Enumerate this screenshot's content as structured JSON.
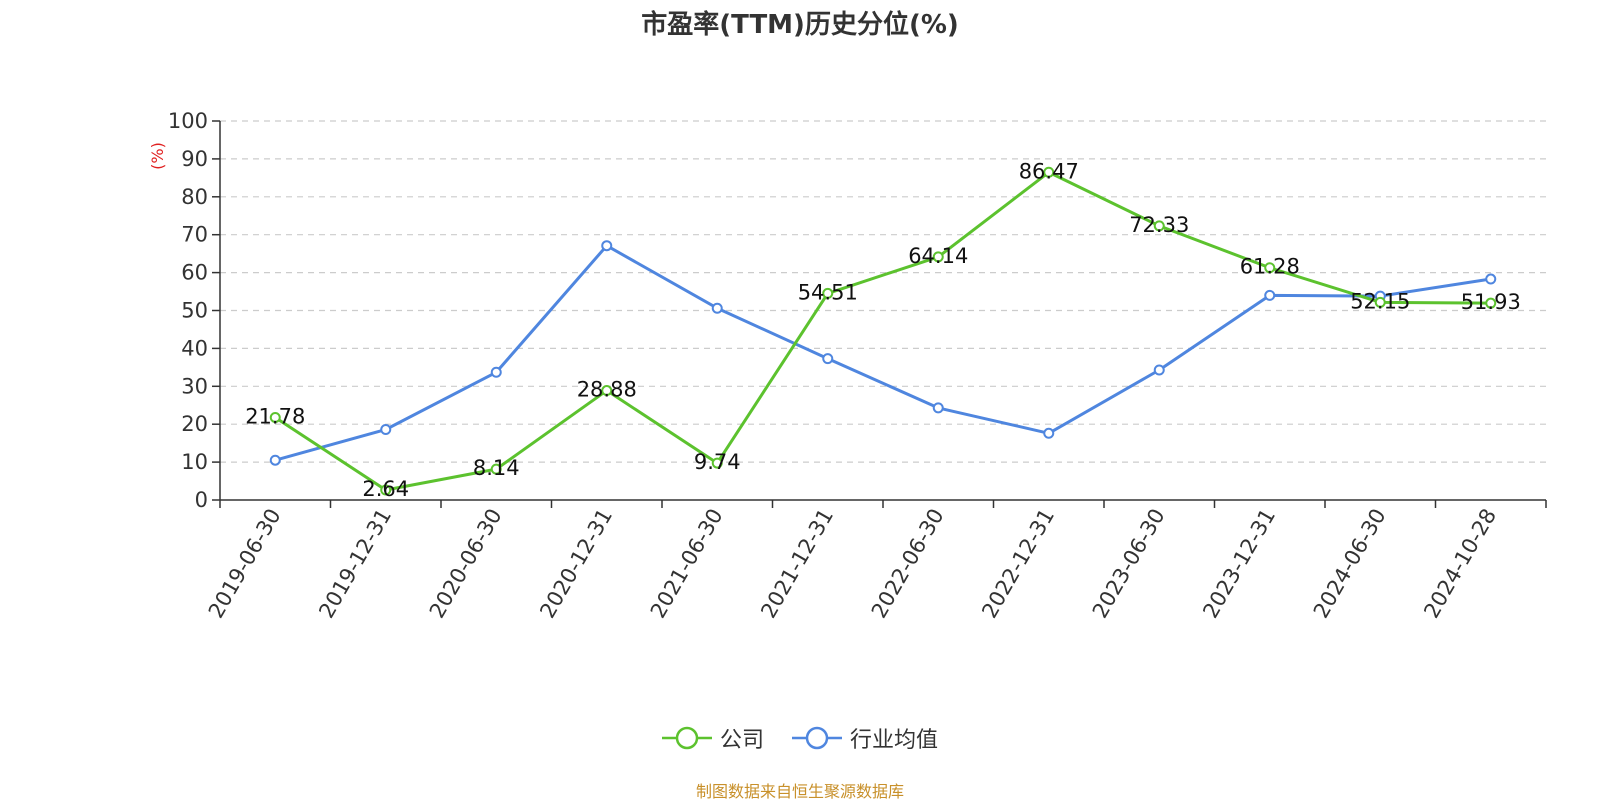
{
  "chart_data": {
    "type": "line",
    "title": "市盈率(TTM)历史分位(%)",
    "ylabel": "(%)",
    "xlabel": "",
    "ylim": [
      0,
      100
    ],
    "yticks": [
      0,
      10,
      20,
      30,
      40,
      50,
      60,
      70,
      80,
      90,
      100
    ],
    "grid": "horizontal-dashed",
    "legend_position": "bottom-center",
    "categories": [
      "2019-06-30",
      "2019-12-31",
      "2020-06-30",
      "2020-12-31",
      "2021-06-30",
      "2021-12-31",
      "2022-06-30",
      "2022-12-31",
      "2023-06-30",
      "2023-12-31",
      "2024-06-30",
      "2024-10-28"
    ],
    "series": [
      {
        "name": "公司",
        "color": "#5cc22e",
        "values": [
          21.78,
          2.64,
          8.14,
          28.88,
          9.74,
          54.51,
          64.14,
          86.47,
          72.33,
          61.28,
          52.15,
          51.93
        ],
        "labels": [
          "21.78",
          "2.64",
          "8.14",
          "28.88",
          "9.74",
          "54.51",
          "64.14",
          "86.47",
          "72.33",
          "61.28",
          "52.15",
          "51.93"
        ]
      },
      {
        "name": "行业均值",
        "color": "#4f86df",
        "values": [
          10.5,
          18.6,
          33.7,
          67.1,
          50.6,
          37.3,
          24.3,
          17.6,
          34.3,
          54.0,
          53.8,
          58.3
        ]
      }
    ]
  },
  "source_note": "制图数据来自恒生聚源数据库"
}
